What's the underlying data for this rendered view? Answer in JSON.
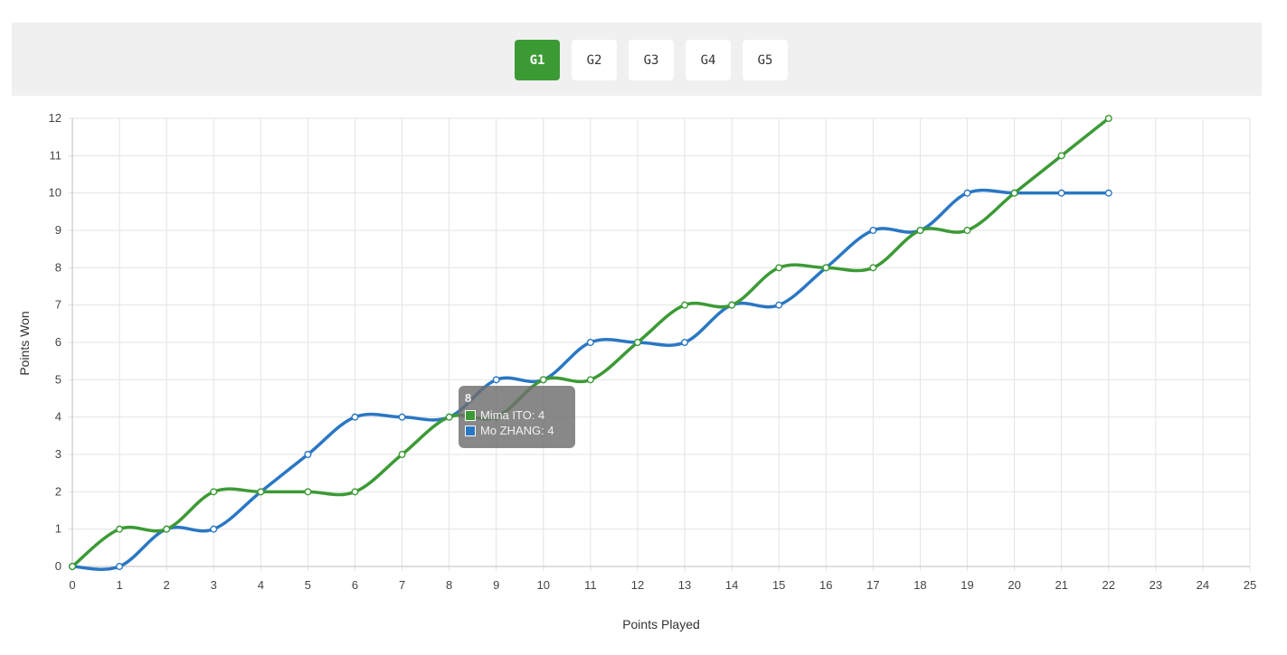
{
  "games": {
    "tabs": [
      {
        "label": "G1",
        "active": true
      },
      {
        "label": "G2",
        "active": false
      },
      {
        "label": "G3",
        "active": false
      },
      {
        "label": "G4",
        "active": false
      },
      {
        "label": "G5",
        "active": false
      }
    ],
    "active_color": "#3c9a35"
  },
  "tooltip": {
    "title": "8",
    "rows": [
      "Mima ITO: 4",
      "Mo ZHANG: 4"
    ],
    "swatch_colors": [
      "#3c9a35",
      "#2a77c4"
    ]
  },
  "chart_data": {
    "type": "line",
    "title": "",
    "xlabel": "Points Played",
    "ylabel": "Points Won",
    "xlim": [
      0,
      25
    ],
    "ylim": [
      0,
      12
    ],
    "grid": true,
    "x": [
      0,
      1,
      2,
      3,
      4,
      5,
      6,
      7,
      8,
      9,
      10,
      11,
      12,
      13,
      14,
      15,
      16,
      17,
      18,
      19,
      20,
      21,
      22
    ],
    "series": [
      {
        "name": "Mima ITO",
        "color": "#3c9a35",
        "values": [
          0,
          1,
          1,
          2,
          2,
          2,
          2,
          3,
          4,
          4,
          5,
          5,
          6,
          7,
          7,
          8,
          8,
          8,
          9,
          9,
          10,
          11,
          12
        ]
      },
      {
        "name": "Mo ZHANG",
        "color": "#2a77c4",
        "values": [
          0,
          0,
          1,
          1,
          2,
          3,
          4,
          4,
          4,
          5,
          5,
          6,
          6,
          6,
          7,
          7,
          8,
          9,
          9,
          10,
          10,
          10,
          10
        ]
      }
    ]
  }
}
